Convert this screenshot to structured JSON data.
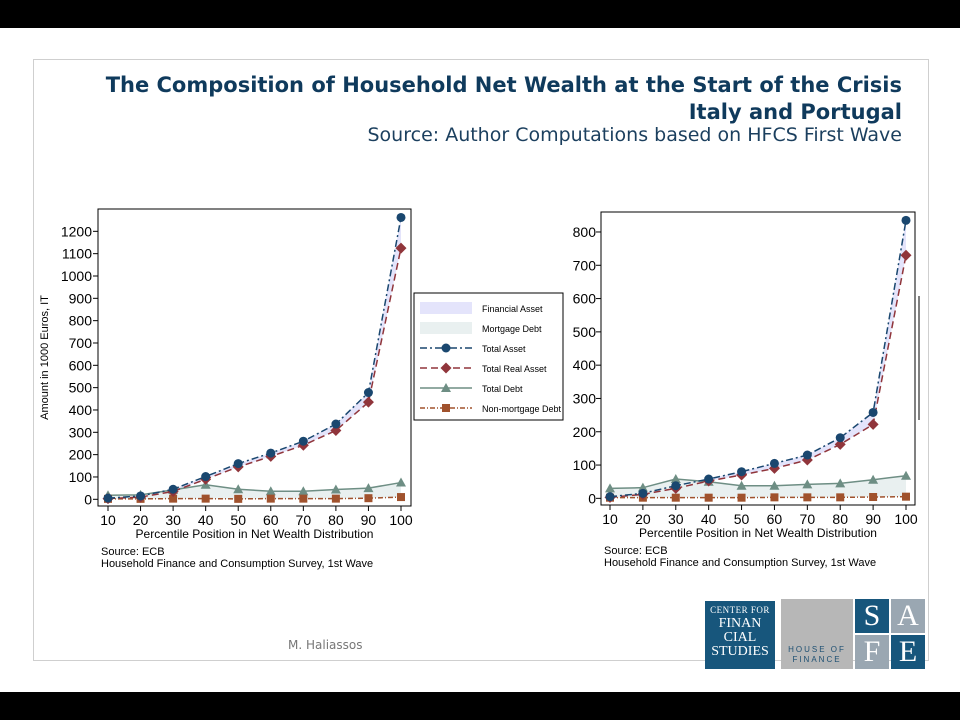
{
  "header": {
    "title_line1": "The Composition of Household Net Wealth at the Start of the Crisis",
    "title_line2": "Italy and Portugal",
    "subtitle": "Source: Author Computations based on HFCS  First Wave"
  },
  "footer": {
    "author": "M. Haliassos"
  },
  "logos": {
    "cfs_lines": [
      "CENTER FOR",
      "FINAN",
      "CIAL",
      "STUDIES"
    ],
    "hof_lines": [
      "HOUSE OF",
      "FINANCE"
    ],
    "safe_letters": [
      "S",
      "A",
      "F",
      "E"
    ]
  },
  "colors": {
    "total_asset": "#1a476f",
    "total_real_asset": "#90353b",
    "total_debt": "#6e8e84",
    "non_mortgage_debt": "#a0522d",
    "financial_asset_fill": "#e4e4fb",
    "mortgage_debt_fill": "#e9f0f0"
  },
  "legend": {
    "items": [
      {
        "key": "financial_asset",
        "label": "Financial Asset"
      },
      {
        "key": "mortgage_debt",
        "label": "Mortgage Debt"
      },
      {
        "key": "total_asset",
        "label": "Total Asset"
      },
      {
        "key": "total_real_asset",
        "label": "Total Real Asset"
      },
      {
        "key": "total_debt",
        "label": "Total Debt"
      },
      {
        "key": "non_mortgage_debt",
        "label": "Non-mortgage Debt"
      }
    ]
  },
  "chart_data": [
    {
      "type": "line",
      "country": "Italy",
      "xlabel": "Percentile Position in Net Wealth Distribution",
      "ylabel": "Amount in 1000 Euros, IT",
      "x": [
        10,
        20,
        30,
        40,
        50,
        60,
        70,
        80,
        90,
        100
      ],
      "yticks": [
        0,
        100,
        200,
        300,
        400,
        500,
        600,
        700,
        800,
        900,
        1000,
        1100,
        1200
      ],
      "ylim": [
        -30,
        1300
      ],
      "source_lines": [
        "Source: ECB",
        "Household Finance and Consumption Survey, 1st Wave"
      ],
      "series": [
        {
          "key": "total_asset",
          "name": "Total Asset",
          "values": [
            5,
            15,
            45,
            102,
            160,
            207,
            260,
            337,
            478,
            1262
          ]
        },
        {
          "key": "total_real_asset",
          "name": "Total Real Asset",
          "values": [
            3,
            10,
            35,
            90,
            145,
            192,
            242,
            308,
            435,
            1125
          ]
        },
        {
          "key": "total_debt",
          "name": "Total Debt",
          "values": [
            18,
            20,
            42,
            65,
            45,
            36,
            36,
            44,
            50,
            75
          ]
        },
        {
          "key": "non_mortgage_debt",
          "name": "Non-mortgage Debt",
          "values": [
            2,
            2,
            3,
            3,
            2,
            3,
            3,
            3,
            5,
            10
          ]
        }
      ]
    },
    {
      "type": "line",
      "country": "Portugal",
      "xlabel": "Percentile Position in Net Wealth Distribution",
      "ylabel": "",
      "x": [
        10,
        20,
        30,
        40,
        50,
        60,
        70,
        80,
        90,
        100
      ],
      "yticks": [
        0,
        100,
        200,
        300,
        400,
        500,
        600,
        700,
        800
      ],
      "ylim": [
        -20,
        860
      ],
      "source_lines": [
        "Source: ECB",
        "Household Finance and Consumption Survey, 1st Wave"
      ],
      "series": [
        {
          "key": "total_asset",
          "name": "Total Asset",
          "values": [
            5,
            15,
            38,
            58,
            80,
            105,
            130,
            182,
            258,
            835
          ]
        },
        {
          "key": "total_real_asset",
          "name": "Total Real Asset",
          "values": [
            3,
            12,
            30,
            52,
            70,
            90,
            115,
            162,
            222,
            730
          ]
        },
        {
          "key": "total_debt",
          "name": "Total Debt",
          "values": [
            30,
            32,
            58,
            50,
            38,
            38,
            42,
            45,
            56,
            68
          ]
        },
        {
          "key": "non_mortgage_debt",
          "name": "Non-mortgage Debt",
          "values": [
            2,
            2,
            2,
            2,
            2,
            3,
            3,
            3,
            4,
            5
          ]
        }
      ]
    }
  ]
}
